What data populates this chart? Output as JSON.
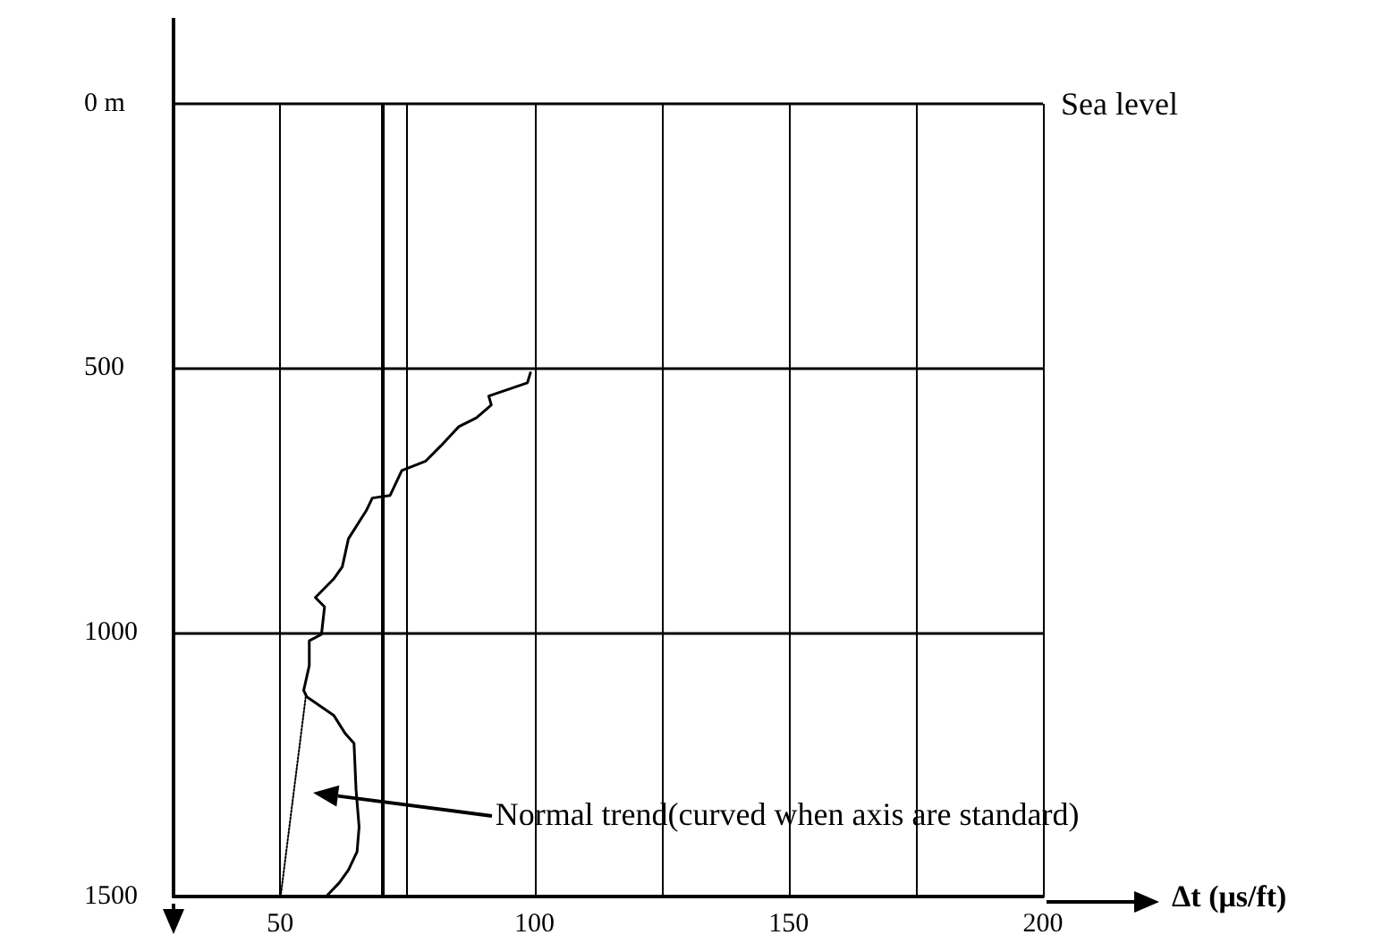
{
  "chart_data": {
    "type": "line",
    "xlabel": "Δt (μs/ft)",
    "xlim": [
      29,
      200
    ],
    "xticks": [
      50,
      {
        "value": 75,
        "label": null
      },
      100,
      {
        "value": 125,
        "label": null
      },
      150,
      {
        "value": 175,
        "label": null
      },
      200
    ],
    "ylim": [
      1500,
      0
    ],
    "yticks": [
      {
        "value": 0,
        "label": "0 m"
      },
      500,
      1000,
      1500
    ],
    "grid": true,
    "marker": "none",
    "series": [
      {
        "color": "#000000",
        "line_style": "solid",
        "x": [
          99.2,
          98.6,
          91,
          91.5,
          88.6,
          85.1,
          81.6,
          78.6,
          73.9,
          71.6,
          68.1,
          66.9,
          63.4,
          62.2,
          60.5,
          56.9,
          58.7,
          58.1,
          55.7,
          55.7,
          54.6,
          55.2,
          60.5,
          62.8,
          64.5,
          64.9,
          65.5,
          65.1,
          63.4,
          61.6,
          59.3
        ],
        "values": [
          509,
          528,
          553,
          570,
          594,
          611,
          647,
          676,
          694,
          741,
          746,
          770,
          823,
          876,
          899,
          934,
          952,
          1004,
          1016,
          1063,
          1110,
          1122,
          1157,
          1192,
          1210,
          1298,
          1368,
          1415,
          1450,
          1474,
          1497
        ]
      },
      {
        "color": "#000000",
        "line_style": "dotted",
        "x": [
          55,
          50.1
        ],
        "values": [
          1122,
          1497
        ]
      }
    ],
    "ref_lines": [
      {
        "axis": "x",
        "value": 70,
        "label": null
      }
    ],
    "annotations": [
      "Sea level",
      "Normal trend(curved when axis are standard)"
    ]
  }
}
